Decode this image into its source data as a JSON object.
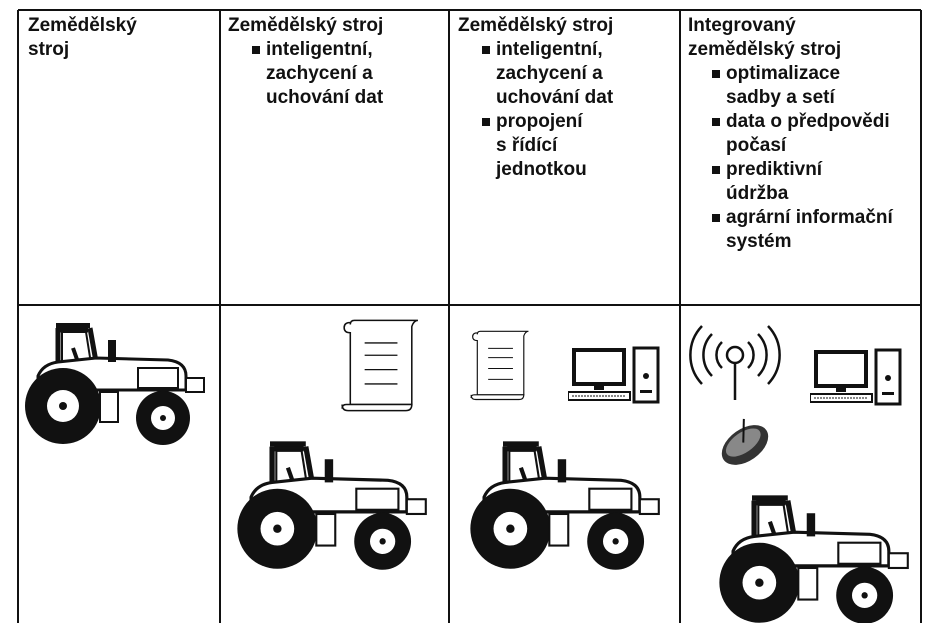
{
  "columns": [
    {
      "title": "Zemědělský stroj",
      "bullets": []
    },
    {
      "title": "Zemědělský stroj",
      "bullets": [
        "inteligentní, zachycení a uchování dat"
      ]
    },
    {
      "title": "Zemědělský stroj",
      "bullets": [
        "inteligentní, zachycení a uchování dat",
        "propojení s řídící jednotkou"
      ]
    },
    {
      "title": "Integrovaný zemědělský stroj",
      "bullets": [
        "optimalizace sadby a setí",
        "data o předpovědi počasí",
        "prediktivní údržba",
        "agrární informační systém"
      ]
    }
  ]
}
